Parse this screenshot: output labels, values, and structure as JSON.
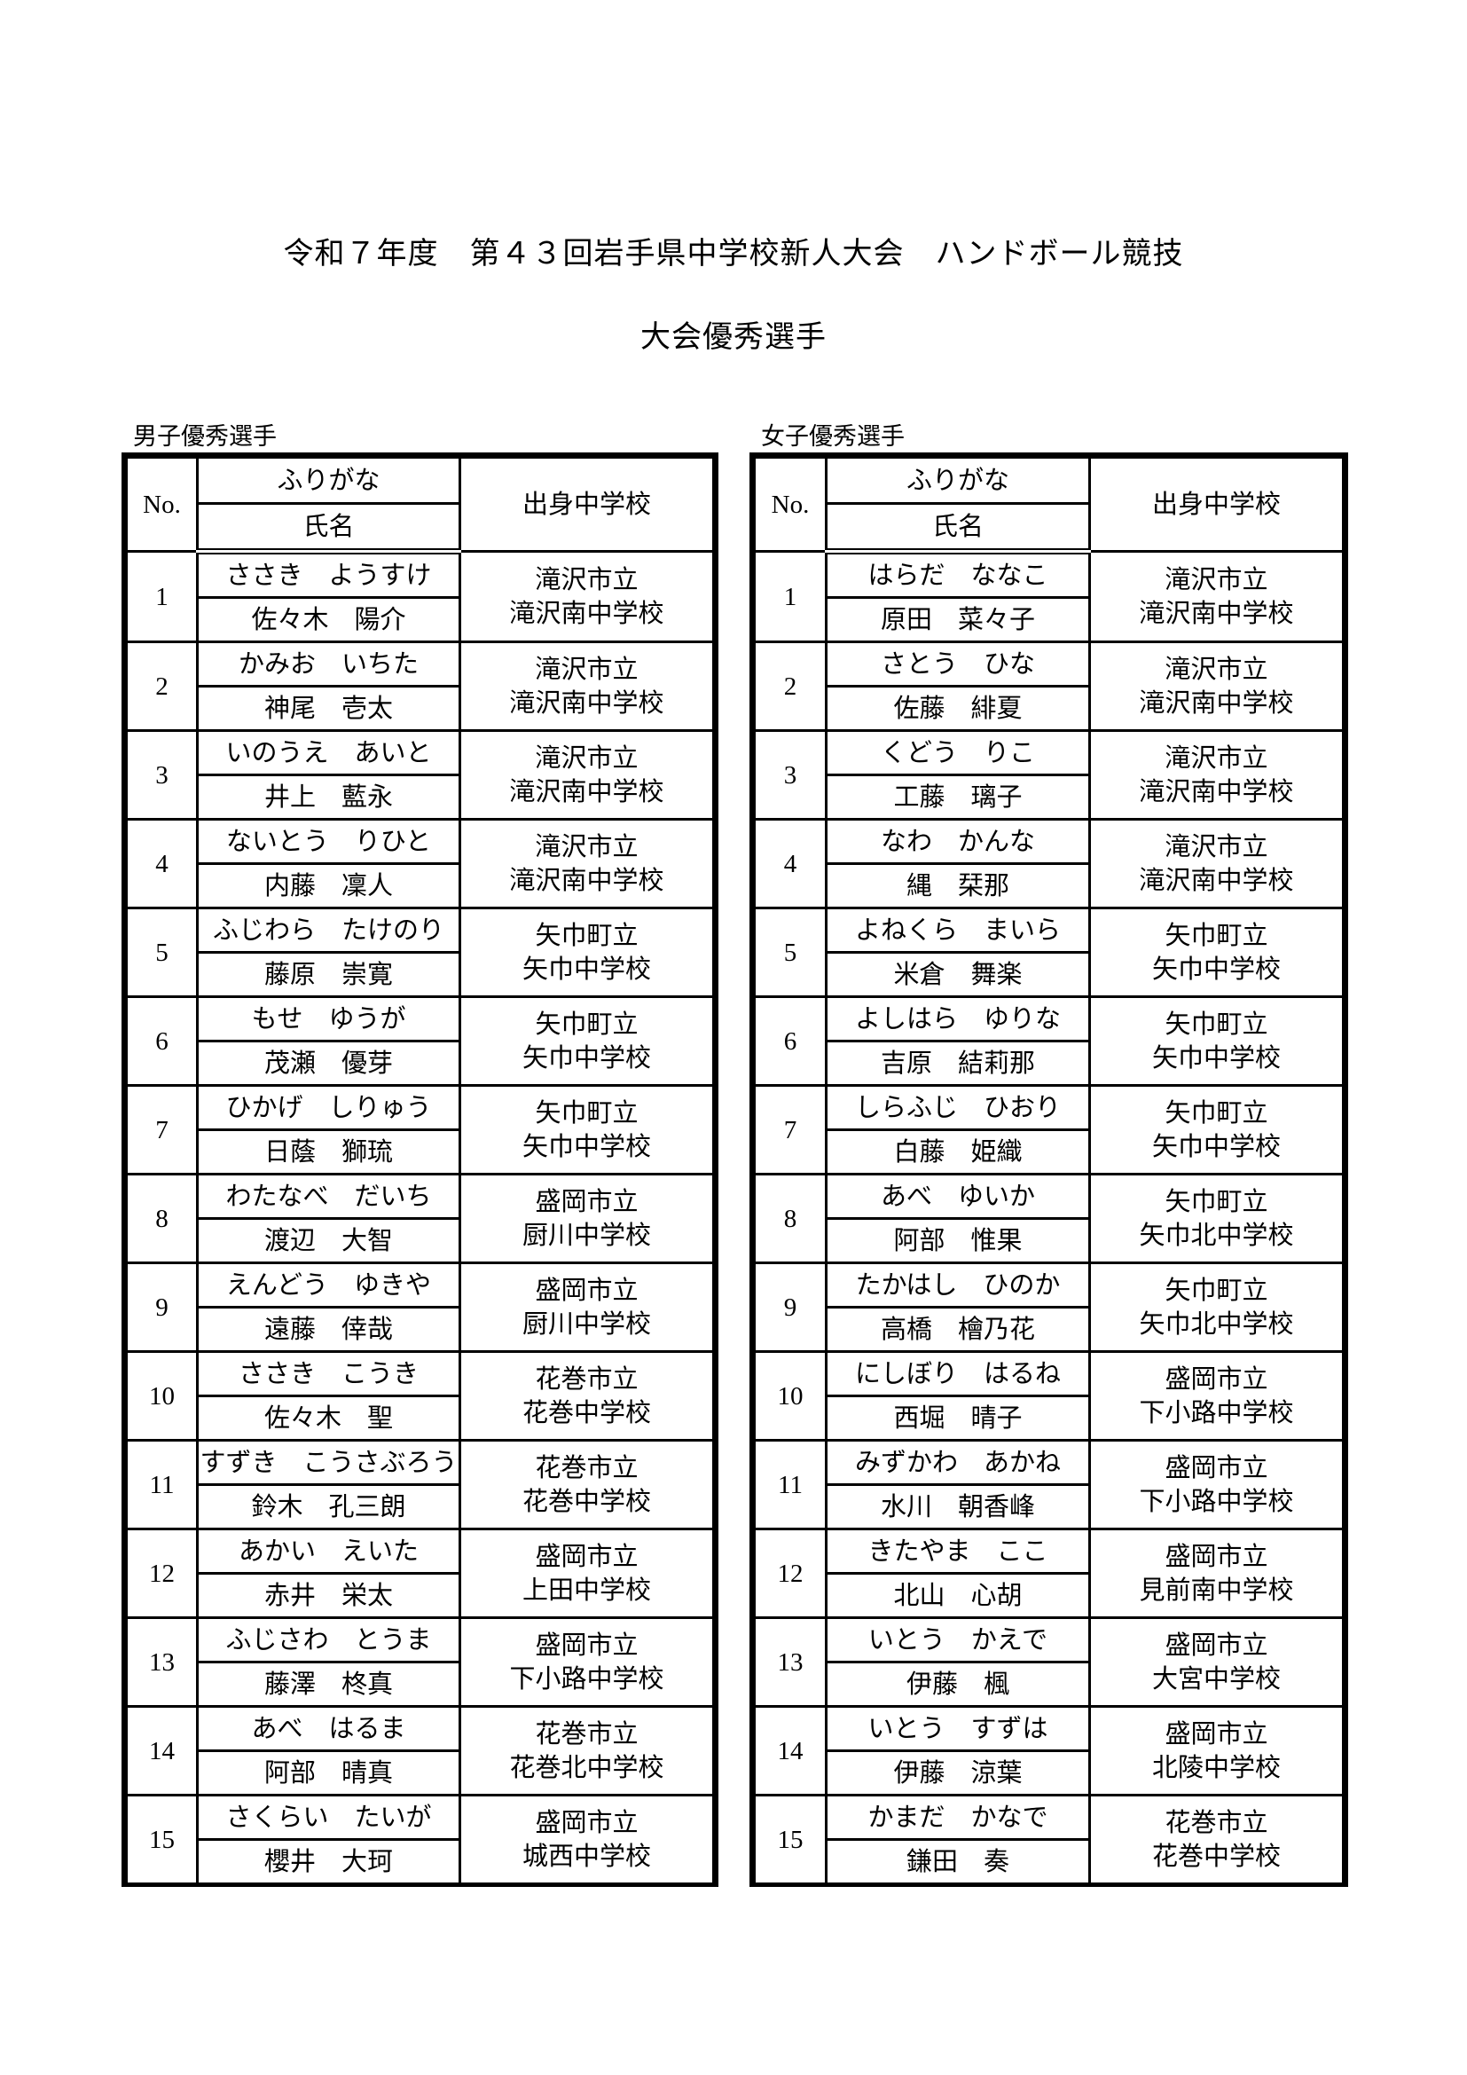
{
  "title": "令和７年度　第４３回岩手県中学校新人大会　ハンドボール競技",
  "subtitle": "大会優秀選手",
  "headers": {
    "no": "No.",
    "furigana": "ふりがな",
    "name": "氏名",
    "school": "出身中学校"
  },
  "boys": {
    "label": "男子優秀選手",
    "players": [
      {
        "no": "1",
        "furigana": "ささき　ようすけ",
        "name": "佐々木　陽介",
        "city": "滝沢市立",
        "school": "滝沢南中学校"
      },
      {
        "no": "2",
        "furigana": "かみお　いちた",
        "name": "神尾　壱太",
        "city": "滝沢市立",
        "school": "滝沢南中学校"
      },
      {
        "no": "3",
        "furigana": "いのうえ　あいと",
        "name": "井上　藍永",
        "city": "滝沢市立",
        "school": "滝沢南中学校"
      },
      {
        "no": "4",
        "furigana": "ないとう　りひと",
        "name": "内藤　凜人",
        "city": "滝沢市立",
        "school": "滝沢南中学校"
      },
      {
        "no": "5",
        "furigana": "ふじわら　たけのり",
        "name": "藤原　崇寛",
        "city": "矢巾町立",
        "school": "矢巾中学校"
      },
      {
        "no": "6",
        "furigana": "もせ　ゆうが",
        "name": "茂瀬　優芽",
        "city": "矢巾町立",
        "school": "矢巾中学校"
      },
      {
        "no": "7",
        "furigana": "ひかげ　しりゅう",
        "name": "日蔭　獅琉",
        "city": "矢巾町立",
        "school": "矢巾中学校"
      },
      {
        "no": "8",
        "furigana": "わたなべ　だいち",
        "name": "渡辺　大智",
        "city": "盛岡市立",
        "school": "厨川中学校"
      },
      {
        "no": "9",
        "furigana": "えんどう　ゆきや",
        "name": "遠藤　倖哉",
        "city": "盛岡市立",
        "school": "厨川中学校"
      },
      {
        "no": "10",
        "furigana": "ささき　こうき",
        "name": "佐々木　聖",
        "city": "花巻市立",
        "school": "花巻中学校"
      },
      {
        "no": "11",
        "furigana": "すずき　こうさぶろう",
        "name": "鈴木　孔三朗",
        "city": "花巻市立",
        "school": "花巻中学校"
      },
      {
        "no": "12",
        "furigana": "あかい　えいた",
        "name": "赤井　栄太",
        "city": "盛岡市立",
        "school": "上田中学校"
      },
      {
        "no": "13",
        "furigana": "ふじさわ　とうま",
        "name": "藤澤　柊真",
        "city": "盛岡市立",
        "school": "下小路中学校"
      },
      {
        "no": "14",
        "furigana": "あべ　はるま",
        "name": "阿部　晴真",
        "city": "花巻市立",
        "school": "花巻北中学校"
      },
      {
        "no": "15",
        "furigana": "さくらい　たいが",
        "name": "櫻井　大珂",
        "city": "盛岡市立",
        "school": "城西中学校"
      }
    ]
  },
  "girls": {
    "label": "女子優秀選手",
    "players": [
      {
        "no": "1",
        "furigana": "はらだ　ななこ",
        "name": "原田　菜々子",
        "city": "滝沢市立",
        "school": "滝沢南中学校"
      },
      {
        "no": "2",
        "furigana": "さとう　ひな",
        "name": "佐藤　緋夏",
        "city": "滝沢市立",
        "school": "滝沢南中学校"
      },
      {
        "no": "3",
        "furigana": "くどう　りこ",
        "name": "工藤　璃子",
        "city": "滝沢市立",
        "school": "滝沢南中学校"
      },
      {
        "no": "4",
        "furigana": "なわ　かんな",
        "name": "縄　栞那",
        "city": "滝沢市立",
        "school": "滝沢南中学校"
      },
      {
        "no": "5",
        "furigana": "よねくら　まいら",
        "name": "米倉　舞楽",
        "city": "矢巾町立",
        "school": "矢巾中学校"
      },
      {
        "no": "6",
        "furigana": "よしはら　ゆりな",
        "name": "吉原　結莉那",
        "city": "矢巾町立",
        "school": "矢巾中学校"
      },
      {
        "no": "7",
        "furigana": "しらふじ　ひおり",
        "name": "白藤　姫織",
        "city": "矢巾町立",
        "school": "矢巾中学校"
      },
      {
        "no": "8",
        "furigana": "あべ　ゆいか",
        "name": "阿部　惟果",
        "city": "矢巾町立",
        "school": "矢巾北中学校"
      },
      {
        "no": "9",
        "furigana": "たかはし　ひのか",
        "name": "高橋　檜乃花",
        "city": "矢巾町立",
        "school": "矢巾北中学校"
      },
      {
        "no": "10",
        "furigana": "にしぼり　はるね",
        "name": "西堀　晴子",
        "city": "盛岡市立",
        "school": "下小路中学校"
      },
      {
        "no": "11",
        "furigana": "みずかわ　あかね",
        "name": "水川　朝香峰",
        "city": "盛岡市立",
        "school": "下小路中学校"
      },
      {
        "no": "12",
        "furigana": "きたやま　ここ",
        "name": "北山　心胡",
        "city": "盛岡市立",
        "school": "見前南中学校"
      },
      {
        "no": "13",
        "furigana": "いとう　かえで",
        "name": "伊藤　楓",
        "city": "盛岡市立",
        "school": "大宮中学校"
      },
      {
        "no": "14",
        "furigana": "いとう　すずは",
        "name": "伊藤　涼葉",
        "city": "盛岡市立",
        "school": "北陵中学校"
      },
      {
        "no": "15",
        "furigana": "かまだ　かなで",
        "name": "鎌田　奏",
        "city": "花巻市立",
        "school": "花巻中学校"
      }
    ]
  }
}
